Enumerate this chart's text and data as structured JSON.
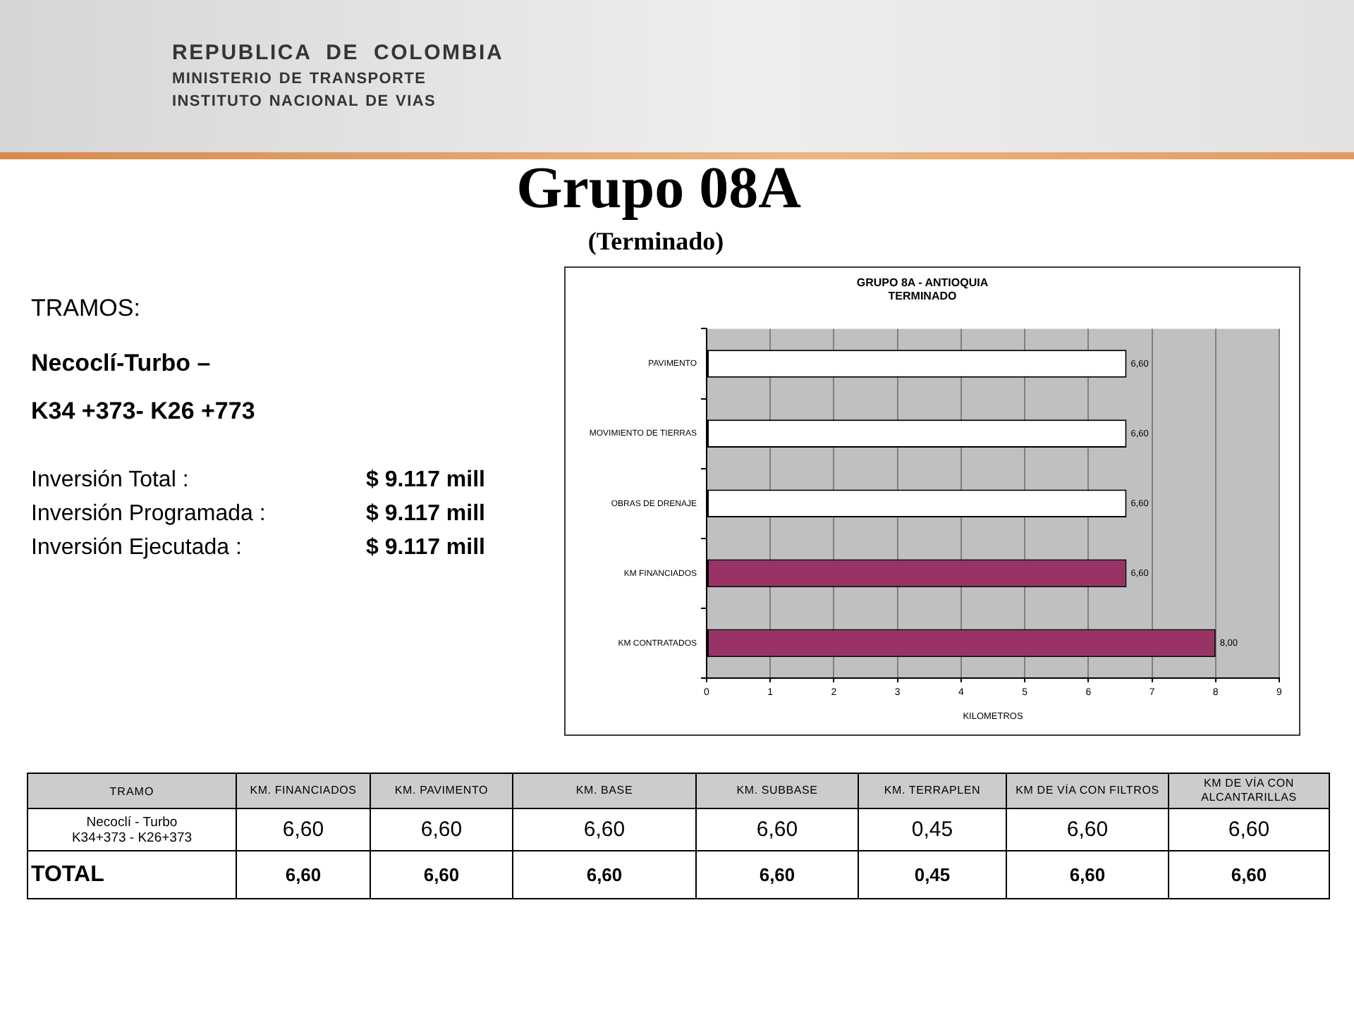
{
  "chart_data": [
    {
      "type": "other",
      "title": "Grupo 08A",
      "subtitle": "(Terminado)",
      "annotations": [
        "REPUBLICA DE COLOMBIA",
        "MINISTERIO DE TRANSPORTE",
        "INSTITUTO NACIONAL DE VIAS",
        "TRAMOS:",
        "Necoclí-Turbo –",
        "K34 +373- K26 +773",
        "Inversión Total :",
        "$ 9.117 mill",
        "Inversión Programada :",
        "$ 9.117 mill",
        "Inversión Ejecutada :",
        "$ 9.117 mill"
      ]
    },
    {
      "type": "bar",
      "orientation": "horizontal",
      "title": "GRUPO 8A - ANTIOQUIA\nTERMINADO",
      "xlabel": "KILOMETROS",
      "categories": [
        "PAVIMENTO",
        "MOVIMIENTO DE TIERRAS",
        "OBRAS DE DRENAJE",
        "KM FINANCIADOS",
        "KM CONTRATADOS"
      ],
      "values": [
        6.6,
        6.6,
        6.6,
        6.6,
        8.0
      ],
      "colors": [
        "#ffffff",
        "#ffffff",
        "#ffffff",
        "#993366",
        "#993366"
      ],
      "value_labels": [
        "6,60",
        "6,60",
        "6,60",
        "6,60",
        "8,00"
      ],
      "xlim": [
        0,
        9
      ],
      "xticks": [
        0,
        1,
        2,
        3,
        4,
        5,
        6,
        7,
        8,
        9
      ],
      "grid": "x"
    },
    {
      "type": "other",
      "legend_title": "TRAMO",
      "categories": [
        "KM. FINANCIADOS",
        "KM. PAVIMENTO",
        "KM. BASE",
        "KM. SUBBASE",
        "KM. TERRAPLEN",
        "KM DE VÍA CON FILTROS",
        "KM DE VÍA CON ALCANTARILLAS"
      ],
      "series": [
        {
          "name": "Necoclí - Turbo\nK34+373 - K26+373",
          "values": [
            6.6,
            6.6,
            6.6,
            6.6,
            0.45,
            6.6,
            6.6
          ],
          "value_labels": [
            "6,60",
            "6,60",
            "6,60",
            "6,60",
            "0,45",
            "6,60",
            "6,60"
          ]
        },
        {
          "name": "TOTAL",
          "values": [
            6.6,
            6.6,
            6.6,
            6.6,
            0.45,
            6.6,
            6.6
          ],
          "value_labels": [
            "6,60",
            "6,60",
            "6,60",
            "6,60",
            "0,45",
            "6,60",
            "6,60"
          ]
        }
      ]
    }
  ]
}
